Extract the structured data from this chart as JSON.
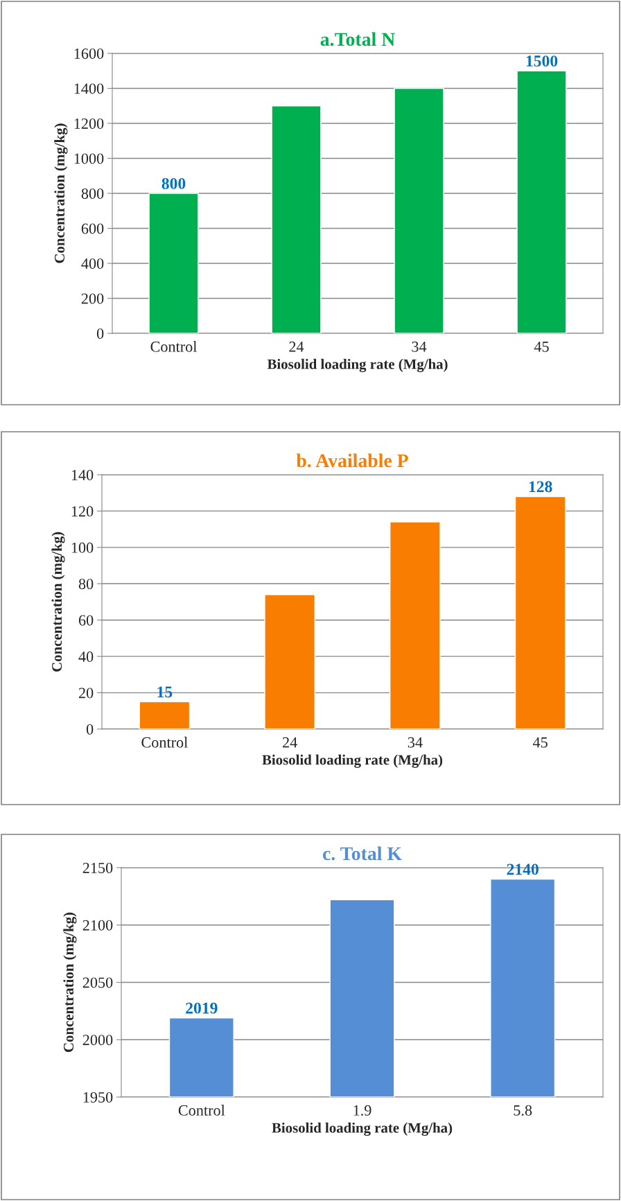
{
  "chart_data": [
    {
      "type": "bar",
      "title": "a.Total N",
      "xlabel": "Biosolid loading rate (Mg/ha)",
      "ylabel": "Concentration (mg/kg)",
      "categories": [
        "Control",
        "24",
        "34",
        "45"
      ],
      "series": [
        {
          "color": "#00b050",
          "values": [
            800,
            1300,
            1400,
            1500
          ],
          "value_labels": [
            "800",
            null,
            null,
            "1500"
          ]
        }
      ],
      "ylim": [
        0,
        1600
      ],
      "yticks": [
        0,
        200,
        400,
        600,
        800,
        1000,
        1200,
        1400,
        1600
      ],
      "grid": "y",
      "legend": false
    },
    {
      "type": "bar",
      "title": "b. Available P",
      "xlabel": "Biosolid loading rate (Mg/ha)",
      "ylabel": "Concentration (mg/kg)",
      "categories": [
        "Control",
        "24",
        "34",
        "45"
      ],
      "series": [
        {
          "color": "#f97d00",
          "values": [
            15,
            74,
            114,
            128
          ],
          "value_labels": [
            "15",
            null,
            null,
            "128"
          ]
        }
      ],
      "ylim": [
        0,
        140
      ],
      "yticks": [
        0,
        20,
        40,
        60,
        80,
        100,
        120,
        140
      ],
      "grid": "y",
      "legend": false
    },
    {
      "type": "bar",
      "title": "c. Total K",
      "xlabel": "Biosolid loading rate (Mg/ha)",
      "ylabel": "Concentration (mg/kg)",
      "categories": [
        "Control",
        "1.9",
        "5.8"
      ],
      "series": [
        {
          "color": "#558ed5",
          "values": [
            2019,
            2122,
            2140
          ],
          "value_labels": [
            "2019",
            null,
            "2140"
          ]
        }
      ],
      "ylim": [
        1950,
        2150
      ],
      "yticks": [
        1950,
        2000,
        2050,
        2100,
        2150
      ],
      "grid": "y",
      "legend": false
    }
  ]
}
